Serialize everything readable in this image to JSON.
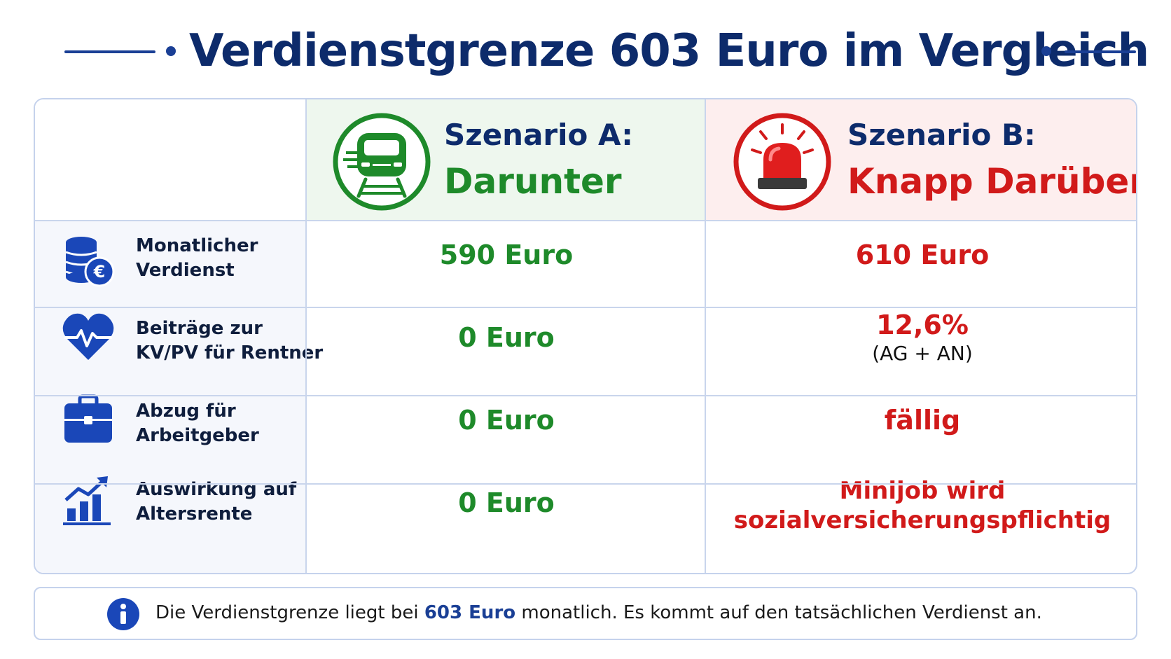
{
  "header": {
    "title": "Verdienstgrenze 603 Euro im Vergleich"
  },
  "scenarios": {
    "a": {
      "title": "Szenario A:",
      "subtitle": "Darunter",
      "icon": "train-icon",
      "color": "#1e8a2a"
    },
    "b": {
      "title": "Szenario B:",
      "subtitle": "Knapp Darüber",
      "icon": "alarm-light-icon",
      "color": "#d11a1a"
    }
  },
  "rows": [
    {
      "icon": "coins-euro-icon",
      "label_1": "Monatlicher",
      "label_2": "Verdienst",
      "a": "590 Euro",
      "b": "610 Euro"
    },
    {
      "icon": "heart-pulse-icon",
      "label_1": "Beiträge zur",
      "label_2": "KV/PV für Rentner",
      "a": "0 Euro",
      "b": "12,6%",
      "b_note": "(AG + AN)"
    },
    {
      "icon": "briefcase-icon",
      "label_1": "Abzug für",
      "label_2": "Arbeitgeber",
      "a": "0 Euro",
      "b": "fällig"
    },
    {
      "icon": "growth-chart-icon",
      "label_1": "Auswirkung auf",
      "label_2": "Altersrente",
      "a": "0 Euro",
      "b_1": "Minijob wird",
      "b_2": "sozialversicherungspflichtig"
    }
  ],
  "info": {
    "icon": "info-icon",
    "text_before": "Die Verdienstgrenze liegt bei ",
    "text_bold": "603 Euro",
    "text_after": " monatlich. Es kommt auf den tatsächlichen Verdienst an."
  },
  "colors": {
    "accent": "#1a3f95",
    "positive": "#1e8a2a",
    "negative": "#d11a1a",
    "border": "#c5d2ec"
  }
}
